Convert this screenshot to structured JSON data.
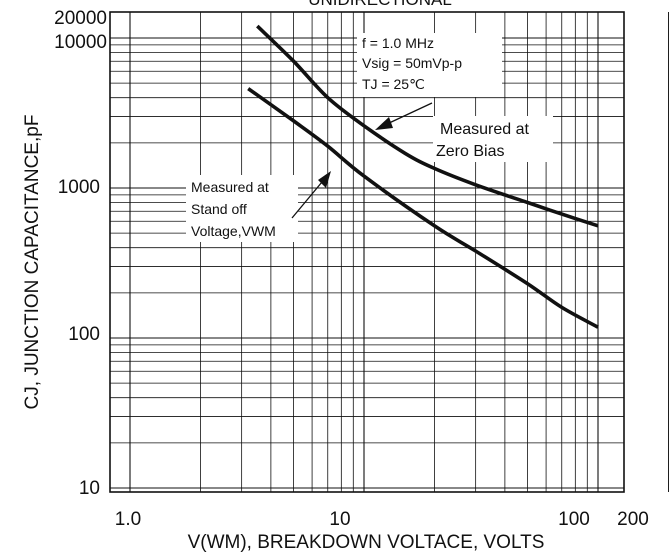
{
  "chart_data": {
    "type": "line",
    "title": "UNIDIRECTIONAL",
    "xlabel": "V(WM), BREAKDOWN VOLTACE, VOLTS",
    "ylabel": "CJ, JUNCTION CAPACITANCE,pF",
    "x_scale": "log",
    "y_scale": "log",
    "xlim": [
      1,
      200
    ],
    "ylim": [
      10,
      20000
    ],
    "x_ticks": [
      1,
      10,
      100,
      200
    ],
    "x_tick_labels": [
      "1.0",
      "10",
      "100",
      "200"
    ],
    "y_ticks": [
      10,
      100,
      1000,
      10000,
      20000
    ],
    "y_tick_labels": [
      "10",
      "100",
      "1000",
      "10000",
      "20000"
    ],
    "grid": true,
    "series": [
      {
        "name": "Measured at Zero Bias",
        "x": [
          3.5,
          5,
          7,
          10,
          15,
          20,
          30,
          50,
          70,
          100
        ],
        "y": [
          12000,
          7000,
          4000,
          2600,
          1700,
          1350,
          1050,
          800,
          670,
          560
        ]
      },
      {
        "name": "Measured at Stand off Voltage,VWM",
        "x": [
          3.2,
          5,
          7,
          10,
          20,
          30,
          50,
          70,
          100
        ],
        "y": [
          4600,
          2800,
          1900,
          1200,
          560,
          380,
          230,
          160,
          118
        ]
      }
    ],
    "annotations": {
      "conditions": [
        "f = 1.0 MHz",
        "Vsig = 50mVp-p",
        "TJ = 25℃"
      ],
      "zero_bias": [
        "Measured at",
        "Zero Bias"
      ],
      "standoff": [
        "Measured at",
        "Stand off",
        "Voltage,VWM"
      ]
    }
  }
}
